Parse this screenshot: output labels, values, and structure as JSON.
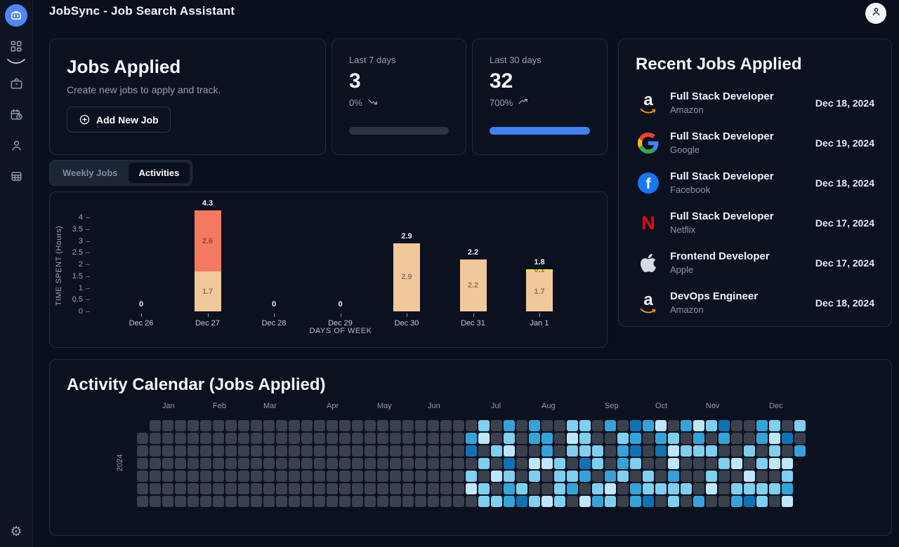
{
  "header": {
    "title": "JobSync - Job Search Assistant"
  },
  "sidebar": {
    "items": [
      {
        "id": "home",
        "icon": "briefcase-icon",
        "active": true
      },
      {
        "id": "dashboard",
        "icon": "dashboard-icon",
        "active": false
      },
      {
        "id": "jobs",
        "icon": "briefcase-outline-icon",
        "active": false
      },
      {
        "id": "schedule",
        "icon": "calendar-clock-icon",
        "active": false
      },
      {
        "id": "profile",
        "icon": "user-icon",
        "active": false
      },
      {
        "id": "applications",
        "icon": "table-icon",
        "active": false
      }
    ],
    "footer_icon": "gear-icon"
  },
  "jobs_applied": {
    "title": "Jobs Applied",
    "subtitle": "Create new jobs to apply and track.",
    "add_button": "Add New Job"
  },
  "stats": [
    {
      "label": "Last 7 days",
      "value": "3",
      "change": "0%",
      "trend": "down",
      "progress_pct": 0
    },
    {
      "label": "Last 30 days",
      "value": "32",
      "change": "700%",
      "trend": "up",
      "progress_pct": 100
    }
  ],
  "tabs": [
    {
      "label": "Weekly Jobs",
      "active": false
    },
    {
      "label": "Activities",
      "active": true
    }
  ],
  "recent_jobs": {
    "title": "Recent Jobs Applied",
    "items": [
      {
        "logo": "amazon-logo",
        "title": "Full Stack Developer",
        "company": "Amazon",
        "date": "Dec 18, 2024"
      },
      {
        "logo": "google-logo",
        "title": "Full Stack Developer",
        "company": "Google",
        "date": "Dec 19, 2024"
      },
      {
        "logo": "facebook-logo",
        "title": "Full Stack Developer",
        "company": "Facebook",
        "date": "Dec 18, 2024"
      },
      {
        "logo": "netflix-logo",
        "title": "Full Stack Developer",
        "company": "Netflix",
        "date": "Dec 17, 2024"
      },
      {
        "logo": "apple-logo",
        "title": "Frontend Developer",
        "company": "Apple",
        "date": "Dec 17, 2024"
      },
      {
        "logo": "amazon-logo",
        "title": "DevOps Engineer",
        "company": "Amazon",
        "date": "Dec 18, 2024"
      }
    ]
  },
  "chart_data": [
    {
      "type": "bar",
      "stacked": true,
      "categories": [
        "Dec 26",
        "Dec 27",
        "Dec 28",
        "Dec 29",
        "Dec 30",
        "Dec 31",
        "Jan 1"
      ],
      "series": [
        {
          "name": "time-spent-base",
          "color": "#f1c89c",
          "values": [
            0,
            1.7,
            0,
            0,
            2.9,
            2.2,
            1.7
          ]
        },
        {
          "name": "time-spent-extra",
          "color": "#f37a60",
          "values": [
            0,
            2.6,
            0,
            0,
            0,
            0,
            0
          ]
        },
        {
          "name": "time-spent-bonus",
          "color": "#f2de4d",
          "values": [
            0,
            0,
            0,
            0,
            0,
            0,
            0.1
          ]
        }
      ],
      "totals": [
        0,
        4.3,
        0,
        0,
        2.9,
        2.2,
        1.8
      ],
      "xlabel": "DAYS OF WEEK",
      "ylabel": "TIME SPENT (Hours)",
      "yticks": [
        0,
        0.5,
        1,
        1.5,
        2,
        2.5,
        3,
        3.5,
        4
      ],
      "ylim": [
        0,
        4.3
      ],
      "grid": false,
      "legend": false
    },
    {
      "type": "heatmap",
      "title": "Activity Calendar (Jobs Applied)",
      "year": "2024",
      "palette": [
        "#3a414c",
        "#bee7f8",
        "#7fd0ee",
        "#35a3d8",
        "#1172b2"
      ],
      "months": [
        {
          "label": "Jan",
          "col": 2
        },
        {
          "label": "Feb",
          "col": 6
        },
        {
          "label": "Mar",
          "col": 10
        },
        {
          "label": "Apr",
          "col": 15
        },
        {
          "label": "May",
          "col": 19
        },
        {
          "label": "Jun",
          "col": 23
        },
        {
          "label": "Jul",
          "col": 28
        },
        {
          "label": "Aug",
          "col": 32
        },
        {
          "label": "Sep",
          "col": 37
        },
        {
          "label": "Oct",
          "col": 41
        },
        {
          "label": "Nov",
          "col": 45
        },
        {
          "label": "Dec",
          "col": 50
        }
      ],
      "weeks": [
        "x000000",
        "0000000",
        "0000000",
        "0000000",
        "0000000",
        "0000000",
        "0000000",
        "0000000",
        "0000000",
        "0000000",
        "0000000",
        "0000000",
        "0000000",
        "0000000",
        "0000000",
        "0000000",
        "0000000",
        "0000000",
        "0000000",
        "0000000",
        "0000000",
        "0000000",
        "0000000",
        "0000000",
        "0000000",
        "0000000",
        "0340210",
        "2102022",
        "0020102",
        "3214233",
        "0000024",
        "3301202",
        "0331001",
        "0002222",
        "2120230",
        "2224301",
        "0022023",
        "3000312",
        "0233200",
        "4342033",
        "3000224",
        "1340020",
        "0211322",
        "3020020",
        "1320003",
        "2020210",
        "4302000",
        "0001023",
        "0020124",
        "3302022",
        "2121020",
        "0401231",
        "203xxxx"
      ]
    }
  ]
}
